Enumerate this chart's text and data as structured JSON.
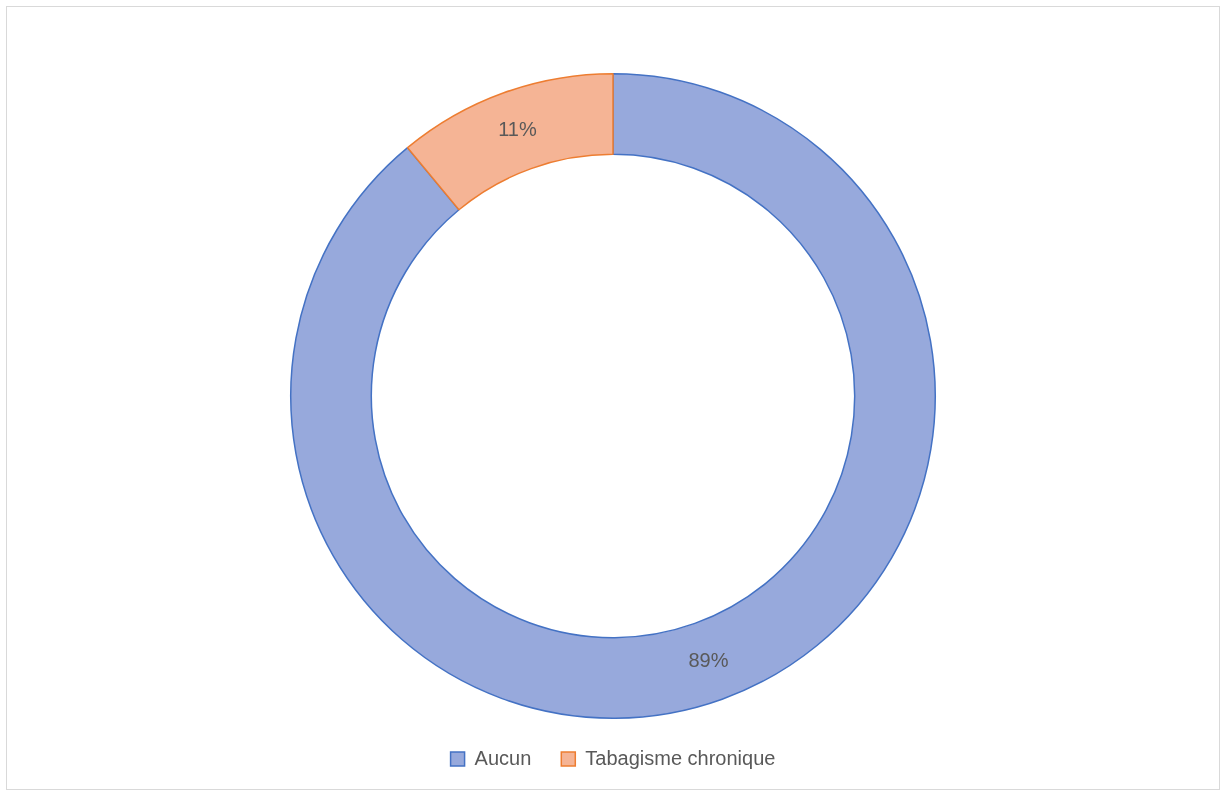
{
  "chart_data": {
    "type": "donut",
    "categories": [
      "Aucun",
      "Tabagisme chronique"
    ],
    "values": [
      89,
      11
    ],
    "colors": [
      "#97a9dc",
      "#f5b495"
    ],
    "value_labels": [
      "89%",
      "11%"
    ],
    "legend": "bottom"
  }
}
